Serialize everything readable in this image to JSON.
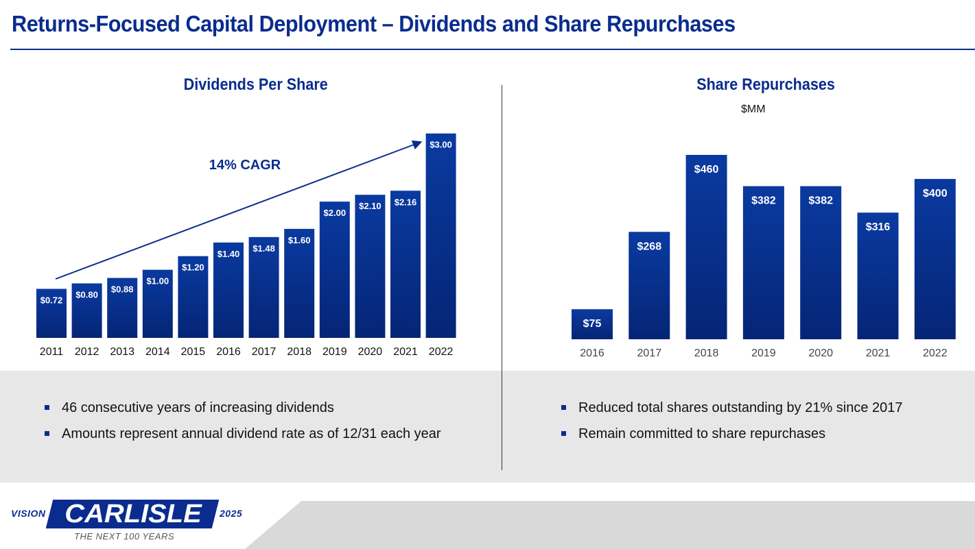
{
  "page": {
    "title": "Returns-Focused Capital Deployment – Dividends and Share Repurchases"
  },
  "colors": {
    "brand_blue": "#0a2c8f",
    "bar_top": "#0a3aa0",
    "bar_bottom": "#052576",
    "band_gray": "#e7e7e7"
  },
  "dividends": {
    "title": "Dividends Per Share",
    "cagr_label": "14% CAGR",
    "bullets": [
      "46 consecutive years of increasing dividends",
      "Amounts represent annual dividend rate as of 12/31 each year"
    ]
  },
  "repurchases": {
    "title": "Share Repurchases",
    "unit": "$MM",
    "bullets": [
      "Reduced total shares outstanding by 21% since 2017",
      "Remain committed to share repurchases"
    ]
  },
  "chart_data": [
    {
      "type": "bar",
      "title": "Dividends Per Share",
      "categories": [
        "2011",
        "2012",
        "2013",
        "2014",
        "2015",
        "2016",
        "2017",
        "2018",
        "2019",
        "2020",
        "2021",
        "2022"
      ],
      "values": [
        0.72,
        0.8,
        0.88,
        1.0,
        1.2,
        1.4,
        1.48,
        1.6,
        2.0,
        2.1,
        2.16,
        3.0
      ],
      "data_labels": [
        "$0.72",
        "$0.80",
        "$0.88",
        "$1.00",
        "$1.20",
        "$1.40",
        "$1.48",
        "$1.60",
        "$2.00",
        "$2.10",
        "$2.16",
        "$3.00"
      ],
      "annotation": "14% CAGR",
      "ylim": [
        0,
        3.45
      ],
      "grid": false,
      "legend": "none"
    },
    {
      "type": "bar",
      "title": "Share Repurchases",
      "subtitle": "$MM",
      "categories": [
        "2016",
        "2017",
        "2018",
        "2019",
        "2020",
        "2021",
        "2022"
      ],
      "values": [
        75,
        268,
        460,
        382,
        382,
        316,
        400
      ],
      "data_labels": [
        "$75",
        "$268",
        "$460",
        "$382",
        "$382",
        "$316",
        "$400"
      ],
      "ylim": [
        0,
        460
      ],
      "grid": false,
      "legend": "none"
    }
  ],
  "footer": {
    "logo_prefix": "VISION",
    "logo_name": "CARLISLE",
    "logo_suffix": "2025",
    "tagline": "THE NEXT 100 YEARS"
  }
}
